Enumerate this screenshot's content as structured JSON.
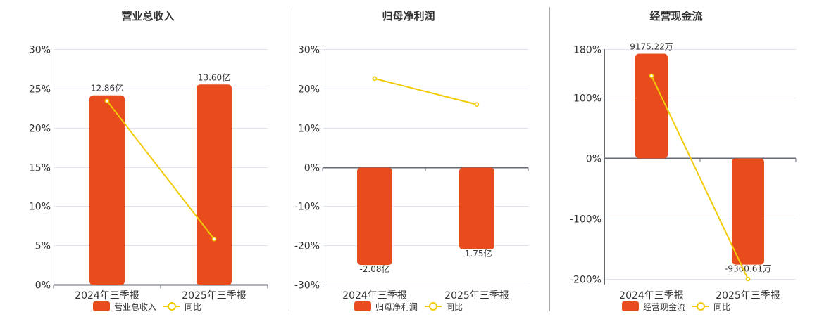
{
  "colors": {
    "bar": "#E84C1C",
    "line": "#F2CB05",
    "grid": "#DDE3F0",
    "axis": "#666A73",
    "text": "#333333",
    "divider": "#AAAAAA"
  },
  "chart_data": [
    {
      "type": "bar+line",
      "title": "营业总收入",
      "categories": [
        "2024年三季报",
        "2025年三季报"
      ],
      "bar_series": {
        "name": "营业总收入",
        "values": [
          12.86,
          13.6
        ],
        "unit": "亿",
        "labels": [
          "12.86亿",
          "13.60亿"
        ]
      },
      "line_series": {
        "name": "同比",
        "values": [
          23.4,
          5.8
        ],
        "unit": "%"
      },
      "yticks": [
        0,
        5,
        10,
        15,
        20,
        25,
        30
      ],
      "ytick_labels": [
        "0%",
        "5%",
        "10%",
        "15%",
        "20%",
        "25%",
        "30%"
      ],
      "ylim": [
        0,
        30
      ],
      "grid": true,
      "legend": "bottom"
    },
    {
      "type": "bar+line",
      "title": "归母净利润",
      "categories": [
        "2024年三季报",
        "2025年三季报"
      ],
      "bar_series": {
        "name": "归母净利润",
        "values": [
          -2.08,
          -1.75
        ],
        "unit": "亿",
        "labels": [
          "-2.08亿",
          "-1.75亿"
        ]
      },
      "line_series": {
        "name": "同比",
        "values": [
          22.5,
          15.9
        ],
        "unit": "%"
      },
      "yticks": [
        -30,
        -20,
        -10,
        0,
        10,
        20,
        30
      ],
      "ytick_labels": [
        "-30%",
        "-20%",
        "-10%",
        "0%",
        "10%",
        "20%",
        "30%"
      ],
      "ylim": [
        -30,
        30
      ],
      "grid": true,
      "legend": "bottom"
    },
    {
      "type": "bar+line",
      "title": "经营现金流",
      "categories": [
        "2024年三季报",
        "2025年三季报"
      ],
      "bar_series": {
        "name": "经营现金流",
        "values": [
          9175.22,
          -9360.61
        ],
        "unit": "万",
        "labels": [
          "9175.22万",
          "-9360.61万"
        ]
      },
      "line_series": {
        "name": "同比",
        "values": [
          135.9,
          -199.8
        ],
        "unit": "%"
      },
      "yticks": [
        -200,
        -100,
        0,
        100,
        180
      ],
      "ytick_labels": [
        "-200%",
        "-100%",
        "0%",
        "100%",
        "180%"
      ],
      "ylim": [
        -209,
        180
      ],
      "grid": true,
      "legend": "bottom"
    }
  ]
}
